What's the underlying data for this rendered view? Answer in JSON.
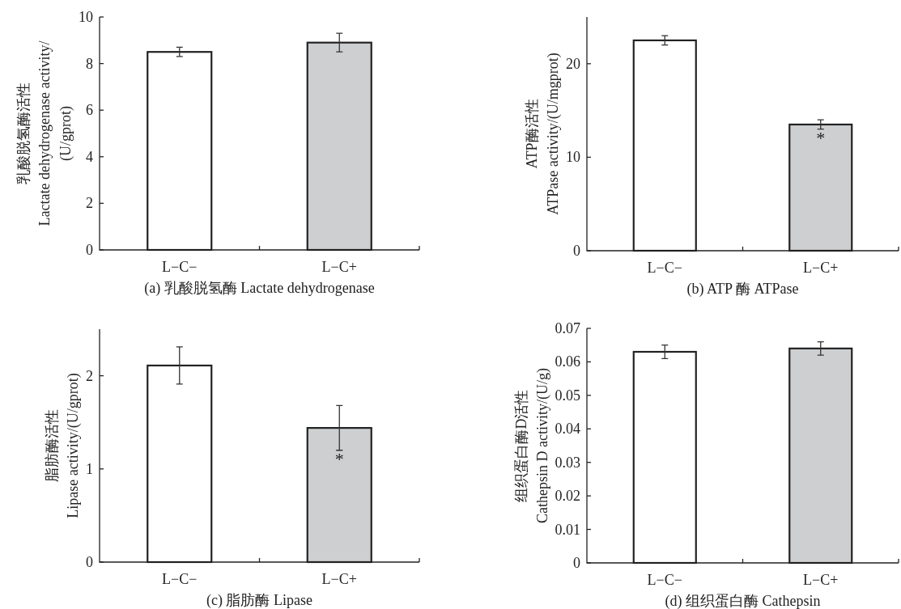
{
  "chart_data": [
    {
      "type": "bar",
      "title": "(a) 乳酸脱氢酶 Lactate dehydrogenase",
      "ylabel": "乳酸脱氢酶活性\nLactate dehydrogenase activity/\n(U/gprot)",
      "categories": [
        "L−C−",
        "L−C+"
      ],
      "values": [
        8.5,
        8.9
      ],
      "errors": [
        0.2,
        0.4
      ],
      "colors": [
        "#ffffff",
        "#cdcfd1"
      ],
      "ylim": [
        0,
        10
      ],
      "yticks": [
        0,
        2,
        4,
        6,
        8,
        10
      ]
    },
    {
      "type": "bar",
      "title": "(b) ATP 酶 ATPase",
      "ylabel": "ATP酶活性\nATPase activity/(U/mgprot)",
      "categories": [
        "L−C−",
        "L−C+"
      ],
      "values": [
        22.5,
        13.5
      ],
      "errors": [
        0.5,
        0.5
      ],
      "colors": [
        "#ffffff",
        "#cdcfd1"
      ],
      "ylim": [
        0,
        25
      ],
      "yticks": [
        0,
        10,
        20
      ],
      "annotations": [
        "*"
      ]
    },
    {
      "type": "bar",
      "title": "(c) 脂肪酶 Lipase",
      "ylabel": "脂肪酶活性\nLipase activity/(U/gprot)",
      "categories": [
        "L−C−",
        "L−C+"
      ],
      "values": [
        2.11,
        1.44
      ],
      "errors": [
        0.2,
        0.24
      ],
      "colors": [
        "#ffffff",
        "#cdcfd1"
      ],
      "ylim": [
        0,
        2.5
      ],
      "yticks": [
        0,
        1,
        2
      ],
      "annotations": [
        "*"
      ]
    },
    {
      "type": "bar",
      "title": "(d) 组织蛋白酶 Cathepsin",
      "ylabel": "组织蛋白酶D活性\nCathepsin D activity/(U/g)",
      "categories": [
        "L−C−",
        "L−C+"
      ],
      "values": [
        0.063,
        0.064
      ],
      "errors": [
        0.002,
        0.002
      ],
      "colors": [
        "#ffffff",
        "#cdcfd1"
      ],
      "ylim": [
        0,
        0.07
      ],
      "yticks": [
        0,
        0.01,
        0.02,
        0.03,
        0.04,
        0.05,
        0.06,
        0.07
      ]
    }
  ]
}
